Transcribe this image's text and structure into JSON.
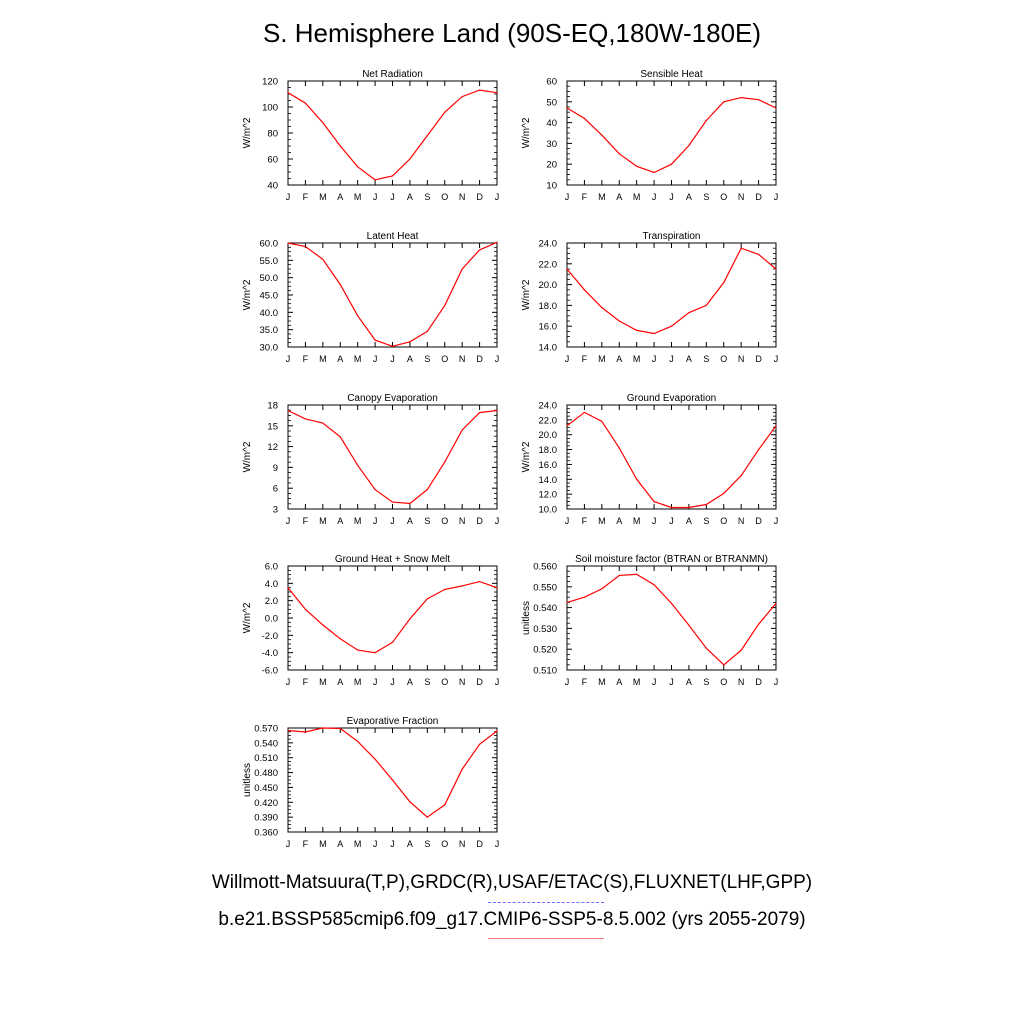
{
  "figure": {
    "title": "S. Hemisphere Land (90S-EQ,180W-180E)",
    "footer_obs": "Willmott-Matsuura(T,P),GRDC(R),USAF/ETAC(S),FLUXNET(LHF,GPP)",
    "footer_model": "b.e21.BSSP585cmip6.f09_g17.CMIP6-SSP5-8.5.002 (yrs 2055-2079)",
    "line_color": "#ff0000",
    "obs_legend_color": "#6b6bff",
    "model_legend_color": "#ff7a7a"
  },
  "chart_data": [
    {
      "type": "line",
      "title": "Net Radiation",
      "ylabel": "W/m^2",
      "x": [
        "J",
        "F",
        "M",
        "A",
        "M",
        "J",
        "J",
        "A",
        "S",
        "O",
        "N",
        "D",
        "J"
      ],
      "ylim": [
        40,
        120
      ],
      "yticks": [
        "40",
        "60",
        "80",
        "100",
        "120"
      ],
      "series": [
        {
          "values": [
            111,
            103,
            88,
            70,
            54,
            44,
            47,
            60,
            78,
            96,
            108,
            113,
            111
          ]
        }
      ]
    },
    {
      "type": "line",
      "title": "Sensible Heat",
      "ylabel": "W/m^2",
      "x": [
        "J",
        "F",
        "M",
        "A",
        "M",
        "J",
        "J",
        "A",
        "S",
        "O",
        "N",
        "D",
        "J"
      ],
      "ylim": [
        10,
        60
      ],
      "yticks": [
        "10",
        "20",
        "30",
        "40",
        "50",
        "60"
      ],
      "series": [
        {
          "values": [
            47,
            42,
            34,
            25,
            19,
            16,
            20,
            29,
            41,
            50,
            52,
            51,
            47
          ]
        }
      ]
    },
    {
      "type": "line",
      "title": "Latent Heat",
      "ylabel": "W/m^2",
      "x": [
        "J",
        "F",
        "M",
        "A",
        "M",
        "J",
        "J",
        "A",
        "S",
        "O",
        "N",
        "D",
        "J"
      ],
      "ylim": [
        30,
        60
      ],
      "yticks": [
        "30.0",
        "35.0",
        "40.0",
        "45.0",
        "50.0",
        "55.0",
        "60.0"
      ],
      "series": [
        {
          "values": [
            60.0,
            59.0,
            55.3,
            48.0,
            39.0,
            32.0,
            30.2,
            31.5,
            34.5,
            42.0,
            52.5,
            58.0,
            60.2
          ]
        }
      ]
    },
    {
      "type": "line",
      "title": "Transpiration",
      "ylabel": "W/m^2",
      "x": [
        "J",
        "F",
        "M",
        "A",
        "M",
        "J",
        "J",
        "A",
        "S",
        "O",
        "N",
        "D",
        "J"
      ],
      "ylim": [
        14,
        24
      ],
      "yticks": [
        "14.0",
        "16.0",
        "18.0",
        "20.0",
        "22.0",
        "24.0"
      ],
      "series": [
        {
          "values": [
            21.5,
            19.5,
            17.8,
            16.5,
            15.6,
            15.3,
            16.0,
            17.3,
            18.0,
            20.2,
            23.5,
            22.9,
            21.5
          ]
        }
      ]
    },
    {
      "type": "line",
      "title": "Canopy Evaporation",
      "ylabel": "W/m^2",
      "x": [
        "J",
        "F",
        "M",
        "A",
        "M",
        "J",
        "J",
        "A",
        "S",
        "O",
        "N",
        "D",
        "J"
      ],
      "ylim": [
        3,
        18
      ],
      "yticks": [
        "3",
        "6",
        "9",
        "12",
        "15",
        "18"
      ],
      "series": [
        {
          "values": [
            17.2,
            16.0,
            15.4,
            13.4,
            9.3,
            5.8,
            4.0,
            3.8,
            5.8,
            9.8,
            14.4,
            16.9,
            17.2
          ]
        }
      ]
    },
    {
      "type": "line",
      "title": "Ground Evaporation",
      "ylabel": "W/m^2",
      "x": [
        "J",
        "F",
        "M",
        "A",
        "M",
        "J",
        "J",
        "A",
        "S",
        "O",
        "N",
        "D",
        "J"
      ],
      "ylim": [
        10,
        24
      ],
      "yticks": [
        "10.0",
        "12.0",
        "14.0",
        "16.0",
        "18.0",
        "20.0",
        "22.0",
        "24.0"
      ],
      "series": [
        {
          "values": [
            21.2,
            23.0,
            21.8,
            18.2,
            14.0,
            11.0,
            10.2,
            10.2,
            10.6,
            12.1,
            14.5,
            18.0,
            21.2
          ]
        }
      ]
    },
    {
      "type": "line",
      "title": "Ground Heat + Snow Melt",
      "ylabel": "W/m^2",
      "x": [
        "J",
        "F",
        "M",
        "A",
        "M",
        "J",
        "J",
        "A",
        "S",
        "O",
        "N",
        "D",
        "J"
      ],
      "ylim": [
        -6,
        6
      ],
      "yticks": [
        "-6.0",
        "-4.0",
        "-2.0",
        "0.0",
        "2.0",
        "4.0",
        "6.0"
      ],
      "series": [
        {
          "values": [
            3.5,
            1.0,
            -0.8,
            -2.4,
            -3.7,
            -4.0,
            -2.8,
            -0.1,
            2.2,
            3.3,
            3.7,
            4.2,
            3.5
          ]
        }
      ]
    },
    {
      "type": "line",
      "title": "Soil moisture factor (BTRAN or BTRANMN)",
      "ylabel": "unitless",
      "x": [
        "J",
        "F",
        "M",
        "A",
        "M",
        "J",
        "J",
        "A",
        "S",
        "O",
        "N",
        "D",
        "J"
      ],
      "ylim": [
        0.51,
        0.56
      ],
      "yticks": [
        "0.510",
        "0.520",
        "0.530",
        "0.540",
        "0.550",
        "0.560"
      ],
      "series": [
        {
          "values": [
            0.5425,
            0.545,
            0.549,
            0.5555,
            0.556,
            0.551,
            0.542,
            0.5315,
            0.5205,
            0.5125,
            0.5195,
            0.532,
            0.542
          ]
        }
      ]
    },
    {
      "type": "line",
      "title": "Evaporative Fraction",
      "ylabel": "unitless",
      "x": [
        "J",
        "F",
        "M",
        "A",
        "M",
        "J",
        "J",
        "A",
        "S",
        "O",
        "N",
        "D",
        "J"
      ],
      "ylim": [
        0.36,
        0.57
      ],
      "yticks": [
        "0.360",
        "0.390",
        "0.420",
        "0.450",
        "0.480",
        "0.510",
        "0.540",
        "0.570"
      ],
      "series": [
        {
          "values": [
            0.565,
            0.562,
            0.57,
            0.569,
            0.543,
            0.507,
            0.465,
            0.421,
            0.39,
            0.415,
            0.487,
            0.537,
            0.564
          ]
        }
      ]
    }
  ]
}
